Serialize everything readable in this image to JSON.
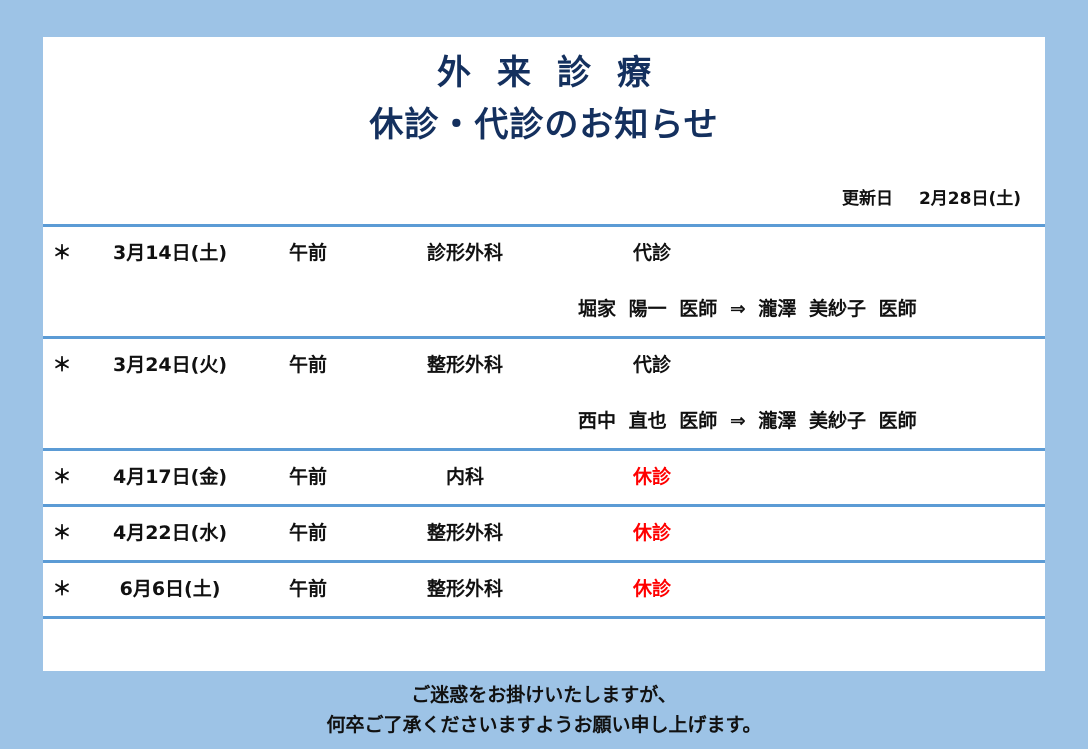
{
  "header": {
    "title1": "外来診療",
    "title2": "休診・代診のお知らせ",
    "updated_label": "更新日",
    "updated_date": "2月28日(土)"
  },
  "rows": [
    {
      "mark": "＊",
      "date": "3月14日(土)",
      "time": "午前",
      "dept": "診形外科",
      "status": "代診",
      "status_type": "substitute",
      "note": "堀家 陽一 医師 ⇒ 瀧澤 美紗子 医師"
    },
    {
      "mark": "＊",
      "date": "3月24日(火)",
      "time": "午前",
      "dept": "整形外科",
      "status": "代診",
      "status_type": "substitute",
      "note": "西中 直也 医師 ⇒ 瀧澤 美紗子 医師"
    },
    {
      "mark": "＊",
      "date": "4月17日(金)",
      "time": "午前",
      "dept": "内科",
      "status": "休診",
      "status_type": "closed"
    },
    {
      "mark": "＊",
      "date": "4月22日(水)",
      "time": "午前",
      "dept": "整形外科",
      "status": "休診",
      "status_type": "closed"
    },
    {
      "mark": "＊",
      "date": "6月6日(土)",
      "time": "午前",
      "dept": "整形外科",
      "status": "休診",
      "status_type": "closed"
    }
  ],
  "footer": {
    "line1": "ご迷惑をお掛けいたしますが、",
    "line2": "何卒ご了承くださいますようお願い申し上げます。"
  },
  "colors": {
    "background": "#9dc3e6",
    "rule": "#5b9bd5",
    "title": "#14305e",
    "closed": "#ff0000"
  }
}
